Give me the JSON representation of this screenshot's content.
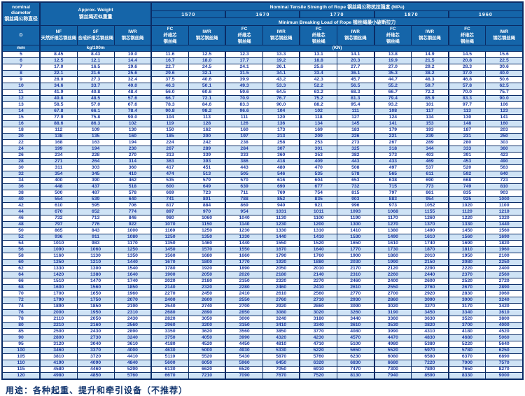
{
  "colors": {
    "header_bg": "#1565a9",
    "stripe_bg": "#cfe3f5",
    "value_text": "#1d3ba5",
    "grid_border": "#0a2c66"
  },
  "table": {
    "header": {
      "diameter": {
        "en1": "nominal",
        "en2": "diameter",
        "zh": "钢丝绳公称直径",
        "symbol": "D",
        "unit": "mm"
      },
      "weight": {
        "en": "Approx. Weight",
        "zh": "钢丝绳近似重量",
        "unit": "kg/100m"
      },
      "weight_cores": {
        "nf": {
          "abbr": "NF",
          "zh": "天然纤维芯钢丝绳"
        },
        "sf": {
          "abbr": "SF",
          "zh": "合成纤维芯钢丝绳"
        },
        "iwr": {
          "abbr": "IWR",
          "zh": "钢芯钢丝绳"
        }
      },
      "tensile_title": "Nominal  Tensile  Strength  of  Rope  钢丝绳公称抗拉强度  (MPa)",
      "breaking_title": "Minimun  Breaking  Load  of  Rope  钢丝绳最小破断拉力",
      "strengths": [
        "1570",
        "1670",
        "1770",
        "1870",
        "1960"
      ],
      "core_fc": {
        "abbr": "FC",
        "zh1": "纤维芯",
        "zh2": "钢丝绳"
      },
      "core_iwr": {
        "abbr": "IWR",
        "zh": "钢芯钢丝绳"
      },
      "kn_unit": "(KN)"
    },
    "columns": [
      "D",
      "NF",
      "SF",
      "IWR",
      "1570-FC",
      "1570-IWR",
      "1670-FC",
      "1670-IWR",
      "1770-FC",
      "1770-IWR",
      "1870-FC",
      "1870-IWR",
      "1960-FC",
      "1960-IWR"
    ],
    "rows": [
      [
        "5",
        "8.45",
        "8.43",
        "10.0",
        "11.6",
        "12.5",
        "12.3",
        "13.3",
        "13.1",
        "14.1",
        "13.8",
        "14.9",
        "14.5",
        "15.6"
      ],
      [
        "6",
        "12.5",
        "12.1",
        "14.4",
        "16.7",
        "18.0",
        "17.7",
        "19.2",
        "18.8",
        "20.3",
        "19.9",
        "21.5",
        "20.8",
        "22.5"
      ],
      [
        "7",
        "17.0",
        "16.5",
        "19.6",
        "22.7",
        "24.5",
        "24.1",
        "26.1",
        "25.6",
        "27.7",
        "27.0",
        "29.2",
        "28.3",
        "30.6"
      ],
      [
        "8",
        "22.1",
        "21.6",
        "25.6",
        "29.6",
        "32.1",
        "31.5",
        "34.1",
        "33.4",
        "36.1",
        "35.3",
        "38.2",
        "37.0",
        "40.0"
      ],
      [
        "9",
        "28.0",
        "27.3",
        "32.4",
        "37.5",
        "40.6",
        "39.9",
        "43.2",
        "42.3",
        "45.7",
        "44.7",
        "48.3",
        "46.8",
        "50.6"
      ],
      [
        "10",
        "34.6",
        "33.7",
        "40.0",
        "46.3",
        "50.1",
        "49.3",
        "53.3",
        "52.2",
        "56.5",
        "55.2",
        "59.7",
        "57.8",
        "62.5"
      ],
      [
        "11",
        "41.9",
        "40.8",
        "48.4",
        "56.0",
        "60.6",
        "59.6",
        "64.5",
        "63.2",
        "68.3",
        "66.7",
        "72.2",
        "70.0",
        "75.7"
      ],
      [
        "12",
        "49.8",
        "48.5",
        "57.6",
        "66.7",
        "72.1",
        "70.9",
        "76.7",
        "75.2",
        "81.3",
        "79.4",
        "85.9",
        "83.3",
        "90.0"
      ],
      [
        "13",
        "58.5",
        "57.0",
        "67.6",
        "78.3",
        "84.6",
        "83.3",
        "90.0",
        "88.2",
        "95.4",
        "93.2",
        "101",
        "97.7",
        "106"
      ],
      [
        "14",
        "67.8",
        "66.1",
        "78.4",
        "90.8",
        "98.2",
        "96.6",
        "104",
        "102",
        "111",
        "108",
        "117",
        "113",
        "123"
      ],
      [
        "15",
        "77.9",
        "75.8",
        "90.0",
        "104",
        "113",
        "111",
        "120",
        "118",
        "127",
        "124",
        "134",
        "130",
        "141"
      ],
      [
        "16",
        "88.6",
        "86.3",
        "102",
        "119",
        "128",
        "126",
        "136",
        "134",
        "145",
        "141",
        "153",
        "148",
        "160"
      ],
      [
        "18",
        "112",
        "109",
        "130",
        "150",
        "162",
        "160",
        "173",
        "169",
        "183",
        "179",
        "193",
        "187",
        "203"
      ],
      [
        "20",
        "138",
        "135",
        "160",
        "185",
        "200",
        "197",
        "213",
        "209",
        "226",
        "221",
        "239",
        "231",
        "250"
      ],
      [
        "22",
        "168",
        "163",
        "194",
        "224",
        "242",
        "238",
        "258",
        "253",
        "273",
        "267",
        "289",
        "280",
        "303"
      ],
      [
        "24",
        "199",
        "194",
        "230",
        "267",
        "289",
        "284",
        "307",
        "301",
        "325",
        "318",
        "344",
        "333",
        "360"
      ],
      [
        "26",
        "234",
        "228",
        "270",
        "313",
        "339",
        "333",
        "360",
        "353",
        "382",
        "373",
        "403",
        "391",
        "423"
      ],
      [
        "28",
        "271",
        "264",
        "314",
        "363",
        "393",
        "386",
        "418",
        "409",
        "443",
        "433",
        "469",
        "453",
        "490"
      ],
      [
        "30",
        "311",
        "303",
        "360",
        "417",
        "451",
        "443",
        "480",
        "470",
        "508",
        "497",
        "537",
        "520",
        "563"
      ],
      [
        "32",
        "354",
        "345",
        "410",
        "474",
        "513",
        "505",
        "546",
        "535",
        "578",
        "565",
        "611",
        "592",
        "640"
      ],
      [
        "34",
        "400",
        "390",
        "462",
        "535",
        "579",
        "570",
        "616",
        "604",
        "653",
        "638",
        "690",
        "668",
        "723"
      ],
      [
        "36",
        "448",
        "437",
        "518",
        "600",
        "649",
        "639",
        "690",
        "677",
        "732",
        "715",
        "773",
        "749",
        "810"
      ],
      [
        "38",
        "500",
        "487",
        "578",
        "669",
        "723",
        "711",
        "769",
        "754",
        "815",
        "797",
        "861",
        "835",
        "903"
      ],
      [
        "40",
        "554",
        "539",
        "640",
        "741",
        "801",
        "788",
        "852",
        "835",
        "903",
        "883",
        "954",
        "925",
        "1000"
      ],
      [
        "42",
        "610",
        "595",
        "706",
        "817",
        "884",
        "869",
        "940",
        "921",
        "996",
        "973",
        "1052",
        "1020",
        "1100"
      ],
      [
        "44",
        "670",
        "652",
        "774",
        "897",
        "970",
        "954",
        "1031",
        "1011",
        "1093",
        "1068",
        "1155",
        "1120",
        "1210"
      ],
      [
        "46",
        "732",
        "713",
        "846",
        "980",
        "1060",
        "1040",
        "1130",
        "1100",
        "1190",
        "1170",
        "1260",
        "1220",
        "1320"
      ],
      [
        "48",
        "797",
        "776",
        "922",
        "1070",
        "1150",
        "1140",
        "1230",
        "1200",
        "1300",
        "1270",
        "1370",
        "1330",
        "1440"
      ],
      [
        "50",
        "865",
        "843",
        "1000",
        "1160",
        "1250",
        "1230",
        "1330",
        "1310",
        "1410",
        "1380",
        "1490",
        "1450",
        "1560"
      ],
      [
        "52",
        "936",
        "911",
        "1080",
        "1250",
        "1350",
        "1330",
        "1440",
        "1410",
        "1530",
        "1490",
        "1610",
        "1560",
        "1690"
      ],
      [
        "54",
        "1010",
        "983",
        "1170",
        "1350",
        "1460",
        "1440",
        "1550",
        "1520",
        "1650",
        "1610",
        "1740",
        "1690",
        "1820"
      ],
      [
        "56",
        "1090",
        "1060",
        "1250",
        "1450",
        "1570",
        "1550",
        "1670",
        "1640",
        "1770",
        "1730",
        "1870",
        "1810",
        "1960"
      ],
      [
        "58",
        "1160",
        "1130",
        "1350",
        "1560",
        "1680",
        "1660",
        "1790",
        "1760",
        "1900",
        "1860",
        "2010",
        "1950",
        "2100"
      ],
      [
        "60",
        "1250",
        "1210",
        "1440",
        "1670",
        "1800",
        "1770",
        "1920",
        "1880",
        "2030",
        "1990",
        "2150",
        "2080",
        "2250"
      ],
      [
        "62",
        "1330",
        "1300",
        "1540",
        "1780",
        "1920",
        "1890",
        "2050",
        "2010",
        "2170",
        "2120",
        "2290",
        "2220",
        "2400"
      ],
      [
        "64",
        "1420",
        "1380",
        "1640",
        "1900",
        "2050",
        "2020",
        "2180",
        "2140",
        "2310",
        "2260",
        "2440",
        "2370",
        "2560"
      ],
      [
        "66",
        "1510",
        "1470",
        "1740",
        "2020",
        "2180",
        "2150",
        "2320",
        "2270",
        "2460",
        "2400",
        "2600",
        "2520",
        "2720"
      ],
      [
        "68",
        "1600",
        "1560",
        "1850",
        "2140",
        "2320",
        "2280",
        "2460",
        "2410",
        "2610",
        "2550",
        "2760",
        "2670",
        "2890"
      ],
      [
        "70",
        "1700",
        "1650",
        "1960",
        "2270",
        "2450",
        "2410",
        "2610",
        "2560",
        "2770",
        "2700",
        "2920",
        "2830",
        "3060"
      ],
      [
        "72",
        "1790",
        "1750",
        "2070",
        "2400",
        "2600",
        "2550",
        "2760",
        "2710",
        "2930",
        "2860",
        "3090",
        "3000",
        "3240"
      ],
      [
        "74",
        "1890",
        "1850",
        "2190",
        "2540",
        "2740",
        "2700",
        "2920",
        "2860",
        "3090",
        "3020",
        "3270",
        "3170",
        "3420"
      ],
      [
        "76",
        "2000",
        "1950",
        "2310",
        "2680",
        "2890",
        "2850",
        "3080",
        "3020",
        "3260",
        "3190",
        "3450",
        "3340",
        "3610"
      ],
      [
        "78",
        "2110",
        "2050",
        "2430",
        "2820",
        "3050",
        "3000",
        "3240",
        "3180",
        "3440",
        "3360",
        "3630",
        "3520",
        "3800"
      ],
      [
        "80",
        "2210",
        "2160",
        "2560",
        "2960",
        "3200",
        "3150",
        "3410",
        "3340",
        "3610",
        "3530",
        "3820",
        "3700",
        "4000"
      ],
      [
        "85",
        "2500",
        "2430",
        "2890",
        "3350",
        "3620",
        "3560",
        "3850",
        "3770",
        "4080",
        "3990",
        "4310",
        "4180",
        "4520"
      ],
      [
        "90",
        "2800",
        "2730",
        "3240",
        "3750",
        "4050",
        "3990",
        "4320",
        "4230",
        "4570",
        "4470",
        "4830",
        "4680",
        "5060"
      ],
      [
        "95",
        "3120",
        "3040",
        "3610",
        "4180",
        "4520",
        "4450",
        "4810",
        "4710",
        "5100",
        "4980",
        "5380",
        "5220",
        "5640"
      ],
      [
        "100",
        "3460",
        "3370",
        "4000",
        "4630",
        "5000",
        "4930",
        "5330",
        "5220",
        "5650",
        "5520",
        "5970",
        "5780",
        "6250"
      ],
      [
        "105",
        "3810",
        "3720",
        "4410",
        "5110",
        "5520",
        "5430",
        "5870",
        "5760",
        "6230",
        "6080",
        "6580",
        "6370",
        "6890"
      ],
      [
        "110",
        "4190",
        "4090",
        "4840",
        "5600",
        "6050",
        "5960",
        "6450",
        "6320",
        "6830",
        "6680",
        "7220",
        "7000",
        "7570"
      ],
      [
        "115",
        "4580",
        "4460",
        "5290",
        "6130",
        "6620",
        "6520",
        "7050",
        "6910",
        "7470",
        "7300",
        "7890",
        "7650",
        "8270"
      ],
      [
        "120",
        "4980",
        "4850",
        "5760",
        "6670",
        "7210",
        "7090",
        "7670",
        "7520",
        "8130",
        "7940",
        "8590",
        "8330",
        "9000"
      ]
    ]
  },
  "footer_note": "用途：各种起重、提升和牵引设备（不推荐）"
}
